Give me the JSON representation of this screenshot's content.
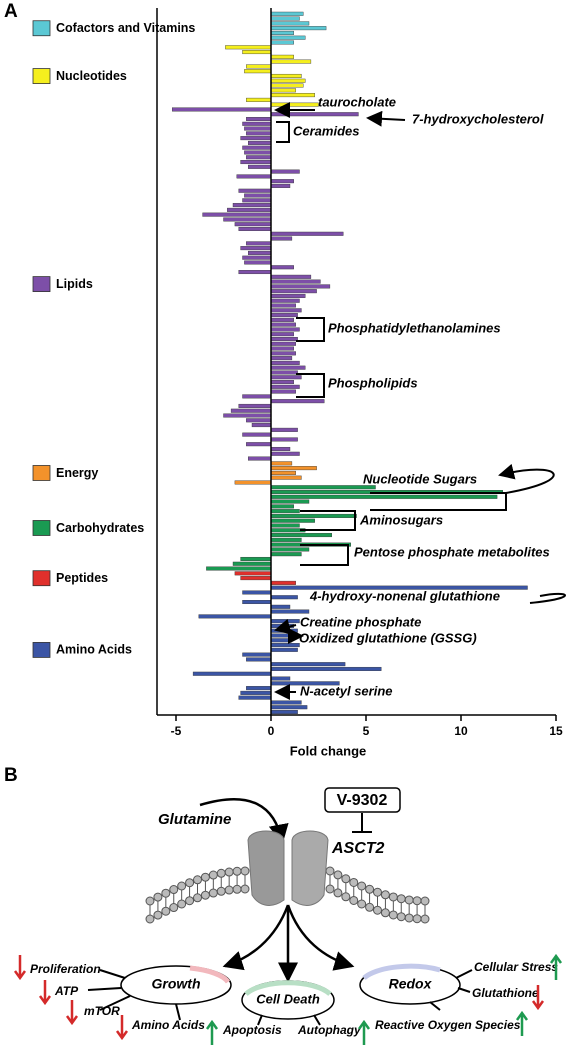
{
  "panel_labels": [
    "A",
    "B"
  ],
  "chart_data": {
    "type": "barh",
    "xlabel": "Fold change",
    "xlim": [
      -6,
      15
    ],
    "xticks": [
      -5,
      0,
      5,
      10,
      15
    ],
    "series": [
      {
        "name": "Cofactors and Vitamins",
        "color": "#5bc8d4",
        "values": [
          1.7,
          1.5,
          2.0,
          2.9,
          1.2,
          1.8,
          1.2
        ]
      },
      {
        "name": "Nucleotides",
        "color": "#f5ef1e",
        "values": [
          -2.4,
          -1.5,
          1.2,
          2.1,
          -1.3,
          -1.4,
          1.6,
          1.8,
          1.7,
          1.3,
          2.3,
          -1.3,
          2.5
        ]
      },
      {
        "name": "Lipids",
        "color": "#7d4fa8",
        "values": [
          -5.2,
          4.6,
          -1.3,
          -1.5,
          -1.4,
          -1.3,
          -1.6,
          -1.2,
          -1.5,
          -1.4,
          -1.3,
          -1.6,
          -1.2,
          1.5,
          -1.8,
          1.2,
          1.0,
          -1.7,
          -1.4,
          -1.5,
          -2.0,
          -2.3,
          -3.6,
          -2.5,
          -1.9,
          -1.7,
          3.8,
          1.1,
          -1.3,
          -1.6,
          -1.2,
          -1.5,
          -1.4,
          1.2,
          -1.7,
          2.1,
          2.6,
          3.1,
          2.4,
          1.8,
          1.5,
          1.3,
          1.6,
          1.4,
          1.2,
          1.3,
          1.5,
          1.2,
          1.4,
          1.3,
          1.2,
          1.3,
          1.1,
          1.5,
          1.8,
          1.4,
          1.6,
          1.2,
          1.5,
          1.3,
          -1.5,
          2.8,
          -1.7,
          -2.1,
          -2.5,
          -1.3,
          -1.0,
          1.4,
          -1.5,
          1.4,
          -1.3,
          1.0,
          1.5,
          -1.2
        ]
      },
      {
        "name": "Energy",
        "color": "#f3922b",
        "values": [
          1.1,
          2.4,
          1.3,
          1.6,
          -1.9
        ]
      },
      {
        "name": "Carbohydrates",
        "color": "#1a9a52",
        "values": [
          5.5,
          12.2,
          11.9,
          2.0,
          1.2,
          1.5,
          4.5,
          2.3,
          1.5,
          1.8,
          3.2,
          1.6,
          4.2,
          2.0,
          1.6,
          -1.6,
          -2.0,
          -3.4
        ]
      },
      {
        "name": "Peptides",
        "color": "#e0302c",
        "values": [
          -1.9,
          -1.6,
          1.3
        ]
      },
      {
        "name": "Amino Acids",
        "color": "#3b55a5",
        "values": [
          13.5,
          -1.5,
          1.4,
          -1.5,
          1.0,
          2.0,
          -3.8,
          1.5,
          1.2,
          1.4,
          1.3,
          1.1,
          1.5,
          1.4,
          -1.5,
          -1.3,
          3.9,
          5.8,
          -4.1,
          1.0,
          3.6,
          -1.3,
          -1.6,
          -1.7,
          1.6,
          1.9,
          1.4
        ]
      }
    ],
    "annotations": [
      "taurocholate",
      "7-hydroxycholesterol",
      "Ceramides",
      "Phosphatidylethanolamines",
      "Phospholipids",
      "Nucleotide Sugars",
      "Aminosugars",
      "Pentose phosphate metabolites",
      "4-hydroxy-nonenal glutathione",
      "Creatine phosphate",
      "Oxidized glutathione (GSSG)",
      "N-acetyl serine"
    ]
  },
  "diagram": {
    "drug": "V-9302",
    "substrate": "Glutamine",
    "transporter": "ASCT2",
    "outcomes": [
      "Growth",
      "Cell Death",
      "Redox"
    ],
    "effects": [
      "Proliferation",
      "ATP",
      "mTOR",
      "Amino Acids",
      "Apoptosis",
      "Autophagy",
      "Cellular Stress",
      "Glutathione",
      "Reactive Oxygen Species"
    ]
  }
}
